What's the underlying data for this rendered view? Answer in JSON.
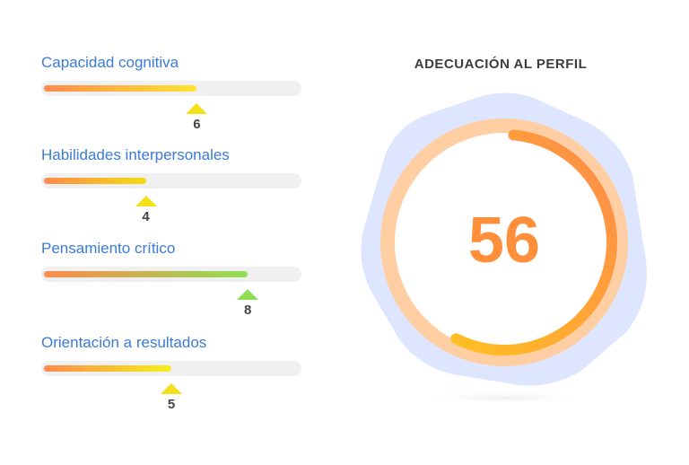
{
  "max_score": 10,
  "skills": [
    {
      "label": "Capacidad cognitiva",
      "value": 6,
      "fill_from": "#ff8a4c",
      "fill_to": "#ffe42e",
      "marker_color": "#f4e11a"
    },
    {
      "label": "Habilidades interpersonales",
      "value": 4,
      "fill_from": "#ff8a4c",
      "fill_to": "#f3dc12",
      "marker_color": "#f4e11a"
    },
    {
      "label": "Pensamiento crítico",
      "value": 8,
      "fill_from": "#ff8a4c",
      "fill_to": "#8fde55",
      "marker_color": "#8fde55"
    },
    {
      "label": "Orientación a resultados",
      "value": 5,
      "fill_from": "#ff8a4c",
      "fill_to": "#f4f01a",
      "marker_color": "#f4e11a"
    }
  ],
  "profile": {
    "title": "ADECUACIÓN AL PERFIL",
    "score": 56,
    "score_max": 100,
    "score_color": "#ff8f3a",
    "ring_track_color": "#ffcfa3",
    "arc_start_color": "#ffbf22",
    "arc_end_color": "#ff8a4c",
    "backdrop_color": "#dde6fe",
    "shadow_color": "#eeeeee"
  }
}
